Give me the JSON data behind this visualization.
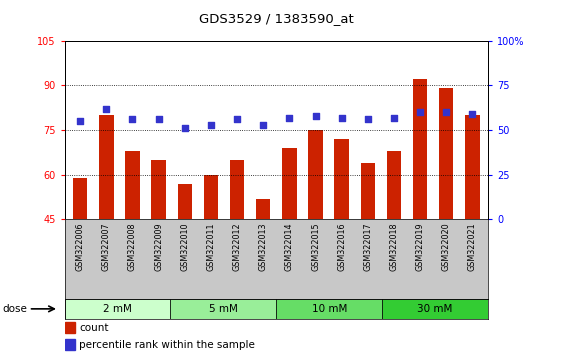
{
  "title": "GDS3529 / 1383590_at",
  "categories": [
    "GSM322006",
    "GSM322007",
    "GSM322008",
    "GSM322009",
    "GSM322010",
    "GSM322011",
    "GSM322012",
    "GSM322013",
    "GSM322014",
    "GSM322015",
    "GSM322016",
    "GSM322017",
    "GSM322018",
    "GSM322019",
    "GSM322020",
    "GSM322021"
  ],
  "bar_values": [
    59,
    80,
    68,
    65,
    57,
    60,
    65,
    52,
    69,
    75,
    72,
    64,
    68,
    92,
    89,
    80
  ],
  "dot_values_pct": [
    55,
    62,
    56,
    56,
    51,
    53,
    56,
    53,
    57,
    58,
    57,
    56,
    57,
    60,
    60,
    59
  ],
  "bar_color": "#cc2200",
  "dot_color": "#3333cc",
  "ylim_left": [
    45,
    105
  ],
  "ylim_right": [
    0,
    100
  ],
  "yticks_left": [
    45,
    60,
    75,
    90,
    105
  ],
  "yticks_right": [
    0,
    25,
    50,
    75,
    100
  ],
  "yticklabels_right": [
    "0",
    "25",
    "50",
    "75",
    "100%"
  ],
  "dose_colors": [
    "#ccffcc",
    "#99ee99",
    "#66dd66",
    "#33cc33"
  ],
  "dose_groups": [
    {
      "label": "2 mM",
      "start": 0,
      "end": 4
    },
    {
      "label": "5 mM",
      "start": 4,
      "end": 8
    },
    {
      "label": "10 mM",
      "start": 8,
      "end": 12
    },
    {
      "label": "30 mM",
      "start": 12,
      "end": 16
    }
  ],
  "label_bg_color": "#c8c8c8",
  "legend_items": [
    {
      "label": "count",
      "color": "#cc2200"
    },
    {
      "label": "percentile rank within the sample",
      "color": "#3333cc"
    }
  ]
}
